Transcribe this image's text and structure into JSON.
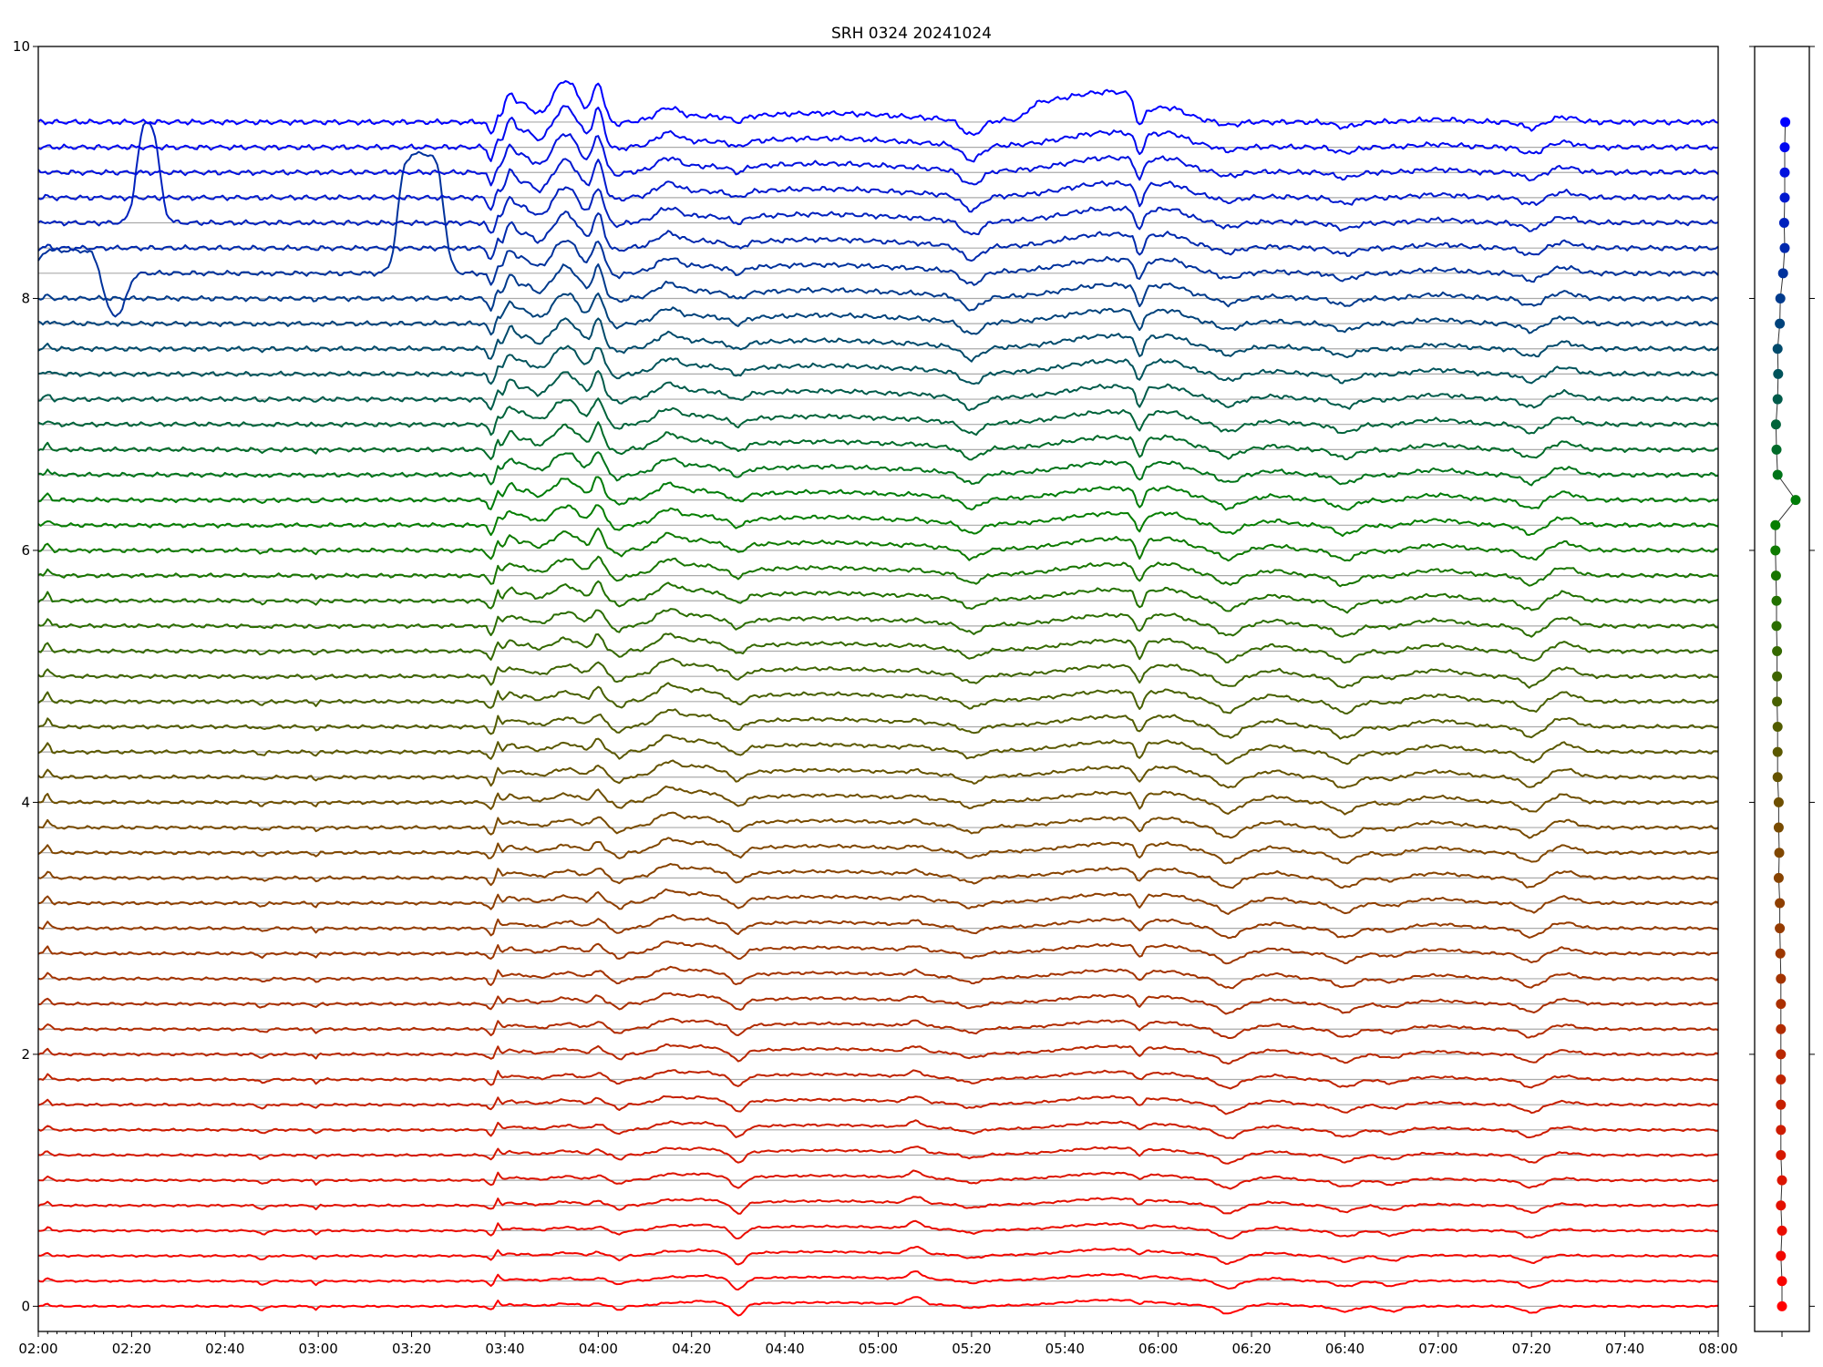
{
  "chart_data": {
    "type": "line",
    "title": "SRH 0324 20241024",
    "xlabel": "",
    "ylabel": "",
    "xlim_minutes_from_0200": [
      0,
      360
    ],
    "ylim": [
      -0.2,
      10
    ],
    "grid": "horizontal lines at each trace baseline",
    "x_tick_labels": [
      "02:00",
      "02:20",
      "02:40",
      "03:00",
      "03:20",
      "03:40",
      "04:00",
      "04:20",
      "04:40",
      "05:00",
      "05:20",
      "05:40",
      "06:00",
      "06:20",
      "06:40",
      "07:00",
      "07:20",
      "07:40",
      "08:00"
    ],
    "x_minor_tick_step_minutes": 2,
    "y_ticks": [
      0,
      2,
      4,
      6,
      8,
      10
    ],
    "y_tick_labels": [
      "0",
      "2",
      "4",
      "6",
      "8",
      "10"
    ],
    "trace_count": 48,
    "trace_spacing": 0.2,
    "colors": {
      "bottom": "#ff0000",
      "lower_mid": "#7a4a00",
      "mid": "#008000",
      "top": "#0000ff"
    },
    "common_events": [
      {
        "t": 2,
        "w": 0.5,
        "amp": [
          0.02,
          0.07,
          0.0
        ]
      },
      {
        "t": 48,
        "w": 0.8,
        "amp": [
          -0.03,
          -0.02,
          0.0
        ]
      },
      {
        "t": 59.5,
        "w": 0.4,
        "amp": [
          -0.03,
          -0.03,
          0.0
        ]
      },
      {
        "t": 97,
        "w": 0.6,
        "amp": [
          -0.03,
          -0.06,
          -0.1
        ]
      },
      {
        "t": 98.5,
        "w": 0.4,
        "amp": [
          0.05,
          0.08,
          0.05
        ]
      },
      {
        "t": 101,
        "w": 1.0,
        "amp": [
          0.01,
          0.05,
          0.2
        ]
      },
      {
        "t": 104,
        "w": 1.8,
        "amp": [
          0.01,
          0.04,
          0.14
        ]
      },
      {
        "t": 113,
        "w": 2.8,
        "amp": [
          0.02,
          0.07,
          0.33
        ]
      },
      {
        "t": 120,
        "w": 1.1,
        "amp": [
          0.02,
          0.1,
          0.3
        ]
      },
      {
        "t": 124.5,
        "w": 0.9,
        "amp": [
          -0.03,
          -0.05,
          -0.02
        ]
      },
      {
        "t": 135,
        "w": 2.5,
        "amp": [
          0.02,
          0.12,
          0.1
        ]
      },
      {
        "t": 142,
        "w": 3.0,
        "amp": [
          0.03,
          0.07,
          0.02
        ]
      },
      {
        "t": 150,
        "w": 1.3,
        "amp": [
          -0.09,
          -0.06,
          -0.04
        ]
      },
      {
        "t": 168,
        "w": 18,
        "amp": [
          0.03,
          0.06,
          0.07
        ]
      },
      {
        "t": 188,
        "w": 1.5,
        "amp": [
          0.06,
          0.02,
          0.0
        ]
      },
      {
        "t": 200,
        "w": 2.0,
        "amp": [
          -0.02,
          -0.06,
          -0.12
        ]
      },
      {
        "t": 230,
        "w": 10,
        "amp": [
          0.05,
          0.08,
          0.12
        ]
      },
      {
        "t": 236,
        "w": 0.8,
        "amp": [
          -0.02,
          -0.12,
          -0.16
        ]
      },
      {
        "t": 243,
        "w": 3.0,
        "amp": [
          0.0,
          0.05,
          0.06
        ]
      },
      {
        "t": 255,
        "w": 2.0,
        "amp": [
          -0.06,
          -0.09,
          -0.03
        ]
      },
      {
        "t": 265,
        "w": 3.0,
        "amp": [
          0.02,
          0.05,
          0.0
        ]
      },
      {
        "t": 280,
        "w": 2.2,
        "amp": [
          -0.04,
          -0.09,
          -0.04
        ]
      },
      {
        "t": 290,
        "w": 2.0,
        "amp": [
          -0.04,
          -0.02,
          0.0
        ]
      },
      {
        "t": 300,
        "w": 5.0,
        "amp": [
          0.0,
          0.05,
          0.02
        ]
      },
      {
        "t": 320,
        "w": 2.0,
        "amp": [
          -0.05,
          -0.08,
          -0.05
        ]
      },
      {
        "t": 327,
        "w": 2.5,
        "amp": [
          0.0,
          0.07,
          0.04
        ]
      }
    ],
    "single_trace_events": [
      {
        "trace": 43,
        "start": 21,
        "end": 26,
        "amp": 0.85
      },
      {
        "trace": 41,
        "start": 77,
        "end": 87,
        "amp": 0.95
      },
      {
        "trace": 41,
        "start": 14,
        "end": 19,
        "amp": -0.35
      },
      {
        "trace": 41,
        "start": 0,
        "end": 13,
        "amp": 0.18
      },
      {
        "trace": 47,
        "start": 212,
        "end": 235,
        "amp": 0.12
      }
    ],
    "side_panel": {
      "y_ticks": [
        0,
        2,
        4,
        6,
        8,
        10
      ],
      "xlim": [
        0,
        1
      ],
      "marker_values": [
        0.5,
        0.5,
        0.48,
        0.5,
        0.48,
        0.5,
        0.48,
        0.48,
        0.48,
        0.48,
        0.48,
        0.48,
        0.48,
        0.48,
        0.47,
        0.46,
        0.46,
        0.44,
        0.45,
        0.44,
        0.44,
        0.42,
        0.42,
        0.42,
        0.41,
        0.41,
        0.41,
        0.4,
        0.4,
        0.39,
        0.38,
        0.38,
        0.75,
        0.42,
        0.4,
        0.39,
        0.42,
        0.43,
        0.42,
        0.46,
        0.47,
        0.52,
        0.55,
        0.54,
        0.55,
        0.55,
        0.55,
        0.56
      ]
    }
  }
}
